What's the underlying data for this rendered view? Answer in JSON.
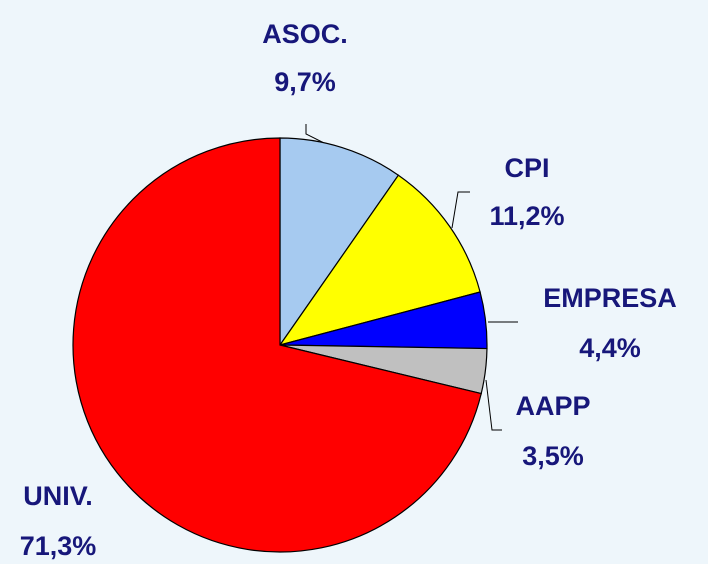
{
  "chart_data": {
    "type": "pie",
    "categories": [
      "ASOC.",
      "CPI",
      "EMPRESA",
      "AAPP",
      "UNIV."
    ],
    "values": [
      9.7,
      11.2,
      4.4,
      3.5,
      71.3
    ],
    "value_labels": [
      "9,7%",
      "11,2%",
      "4,4%",
      "3,5%",
      "71,3%"
    ],
    "colors": [
      "#a6caf0",
      "#ffff00",
      "#0000ff",
      "#c0c0c0",
      "#ff0000"
    ]
  }
}
